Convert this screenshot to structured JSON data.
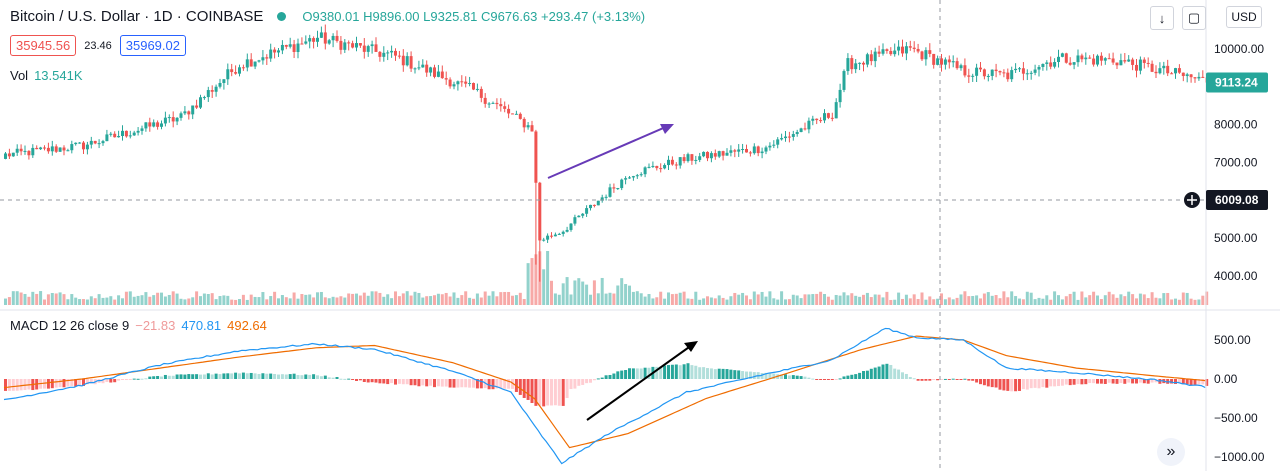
{
  "header": {
    "title": "Bitcoin / U.S. Dollar · 1D · COINBASE",
    "open": "O9380.01",
    "high": "H9896.00",
    "low": "L9325.81",
    "close": "C9676.63",
    "change": "+293.47 (+3.13%)"
  },
  "quote": {
    "bid": "35945.56",
    "spread": "23.46",
    "ask": "35969.02"
  },
  "volume": {
    "label": "Vol",
    "value": "13.541K"
  },
  "macd_legend": {
    "name": "MACD 12 26 close 9",
    "hist": "−21.83",
    "macd": "470.81",
    "signal": "492.64"
  },
  "price_scale": {
    "currency": "USD",
    "ticks": [
      "10000.00",
      "9000.00",
      "8000.00",
      "7000.00",
      "6000.00",
      "5000.00",
      "4000.00"
    ],
    "current_price": "9113.24",
    "crosshair_price": "6009.08"
  },
  "macd_scale": {
    "ticks": [
      "500.00",
      "0.00",
      "−500.00",
      "−1000.00"
    ]
  },
  "icons": {
    "download": "download-icon",
    "fullscreen": "fullscreen-icon",
    "scroll": "scroll-right-icon"
  },
  "colors": {
    "up": "#26a69a",
    "down": "#ef5350",
    "macd": "#2196f3",
    "signal": "#ef6c00",
    "annotation_up": "#673ab7",
    "annotation_macd": "#000000"
  },
  "chart_data": [
    {
      "type": "candlestick",
      "series": "BTCUSD",
      "y_axis_ticks": [
        4000,
        5000,
        6000,
        7000,
        8000,
        9000,
        10000
      ],
      "ylim": [
        3400,
        11000
      ],
      "last_price": 9113.24,
      "crosshair_price": 6009.08,
      "close_path_keypoints": [
        [
          0,
          7200
        ],
        [
          20,
          7450
        ],
        [
          45,
          8200
        ],
        [
          60,
          9600
        ],
        [
          80,
          10300
        ],
        [
          100,
          9800
        ],
        [
          120,
          8900
        ],
        [
          135,
          7900
        ],
        [
          137,
          4950
        ],
        [
          143,
          5200
        ],
        [
          160,
          6700
        ],
        [
          175,
          7100
        ],
        [
          195,
          7400
        ],
        [
          212,
          8300
        ],
        [
          216,
          9600
        ],
        [
          232,
          10000
        ],
        [
          246,
          9400
        ],
        [
          257,
          9300
        ],
        [
          270,
          9750
        ],
        [
          285,
          9700
        ],
        [
          308,
          9150
        ]
      ],
      "volume_last": "13.541K"
    },
    {
      "type": "line",
      "name": "MACD 12 26 close 9",
      "y_axis_ticks": [
        500,
        0,
        -500,
        -1000
      ],
      "ylim": [
        -1080,
        700
      ],
      "macd_keypoints": [
        [
          0,
          -270
        ],
        [
          20,
          -80
        ],
        [
          40,
          180
        ],
        [
          60,
          360
        ],
        [
          80,
          450
        ],
        [
          95,
          380
        ],
        [
          115,
          100
        ],
        [
          130,
          -170
        ],
        [
          136,
          -600
        ],
        [
          143,
          -1080
        ],
        [
          155,
          -700
        ],
        [
          175,
          -170
        ],
        [
          195,
          60
        ],
        [
          212,
          240
        ],
        [
          226,
          650
        ],
        [
          234,
          530
        ],
        [
          246,
          500
        ],
        [
          257,
          140
        ],
        [
          275,
          80
        ],
        [
          295,
          -10
        ],
        [
          308,
          -100
        ]
      ],
      "signal_keypoints": [
        [
          0,
          -110
        ],
        [
          20,
          0
        ],
        [
          40,
          140
        ],
        [
          60,
          280
        ],
        [
          80,
          400
        ],
        [
          95,
          430
        ],
        [
          115,
          210
        ],
        [
          130,
          -40
        ],
        [
          136,
          -250
        ],
        [
          145,
          -880
        ],
        [
          160,
          -700
        ],
        [
          180,
          -250
        ],
        [
          200,
          60
        ],
        [
          220,
          380
        ],
        [
          234,
          550
        ],
        [
          246,
          500
        ],
        [
          257,
          300
        ],
        [
          275,
          140
        ],
        [
          295,
          40
        ],
        [
          308,
          -20
        ]
      ],
      "last_values": {
        "hist": -21.83,
        "macd": 470.81,
        "signal": 492.64
      }
    }
  ]
}
